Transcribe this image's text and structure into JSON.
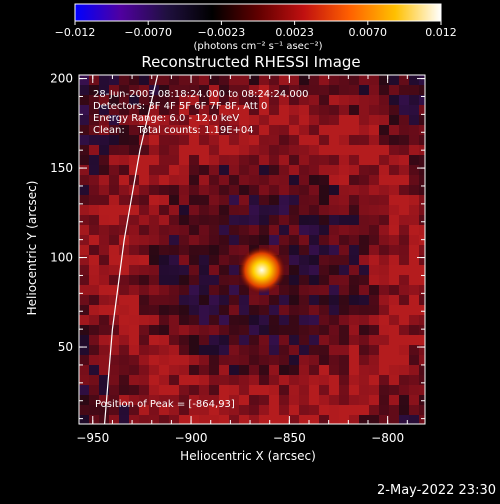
{
  "chart_data": {
    "type": "heatmap",
    "title": "Reconstructed RHESSI Image",
    "annotations": [
      "28-Jun-2003 08:18:24.000 to 08:24:24.000",
      "Detectors: 3F 4F 5F 6F 7F 8F, Att 0",
      "Energy Range: 6.0 - 12.0 keV",
      "Clean:    Total counts: 1.19E+04"
    ],
    "peak_label": "Position of Peak = [-864,93]",
    "peak": {
      "x": -864,
      "y": 93
    },
    "xlabel": "Heliocentric X (arcsec)",
    "ylabel": "Heliocentric Y (arcsec)",
    "xlim": [
      -957,
      -781
    ],
    "ylim": [
      7,
      202
    ],
    "x_ticks": [
      -950,
      -900,
      -850,
      -800
    ],
    "y_ticks": [
      50,
      100,
      150,
      200
    ],
    "x_tick_labels": [
      "−950",
      "−900",
      "−850",
      "−800"
    ],
    "y_tick_labels": [
      "50",
      "100",
      "150",
      "200"
    ],
    "colorbar": {
      "range": [
        -0.012,
        0.012
      ],
      "ticks": [
        "−0.012",
        "−0.0070",
        "−0.0023",
        "0.0023",
        "0.0070",
        "0.012"
      ],
      "unit_label": "(photons cm⁻² s⁻¹ asec⁻²)",
      "colors": [
        "#0000ff",
        "#5000a0",
        "#201040",
        "#000000",
        "#600000",
        "#c01010",
        "#ff6000",
        "#ffc000",
        "#ffffff"
      ]
    },
    "limb_points": [
      [
        -944,
        7
      ],
      [
        -940,
        60
      ],
      [
        -934,
        110
      ],
      [
        -926,
        160
      ],
      [
        -917,
        202
      ]
    ],
    "grid": false,
    "legend": "none"
  },
  "footer": {
    "date": "2-May-2022 23:30"
  }
}
